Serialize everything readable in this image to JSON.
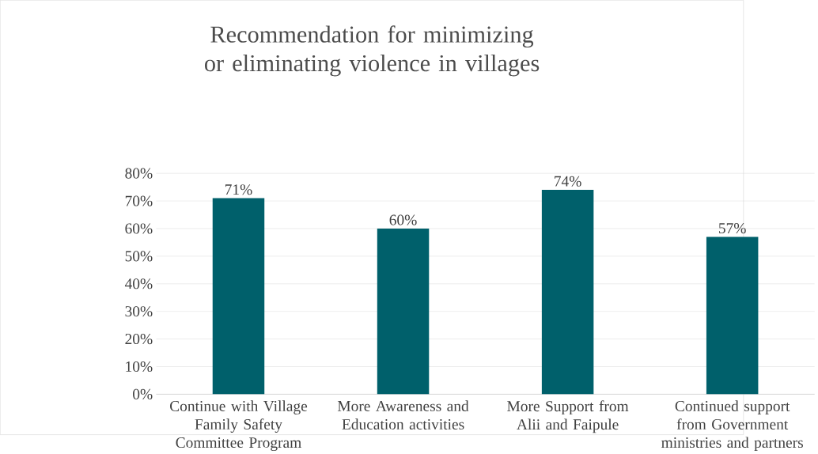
{
  "chart_data": {
    "type": "bar",
    "title": "Recommendation for minimizing or eliminating violence in villages",
    "categories": [
      "Continue with Village Family Safety Committee Program",
      "More Awareness and Education activities",
      "More Support from Alii and Faipule",
      "Continued support from Government ministries and partners"
    ],
    "values": [
      71,
      60,
      74,
      57
    ],
    "value_labels": [
      "71%",
      "60%",
      "74%",
      "57%"
    ],
    "color": "#00606b",
    "ylim": [
      0,
      80
    ],
    "yticks": [
      {
        "value": 0,
        "label": "0%"
      },
      {
        "value": 10,
        "label": "10%"
      },
      {
        "value": 20,
        "label": "20%"
      },
      {
        "value": 30,
        "label": "30%"
      },
      {
        "value": 40,
        "label": "40%"
      },
      {
        "value": 50,
        "label": "50%"
      },
      {
        "value": 60,
        "label": "60%"
      },
      {
        "value": 70,
        "label": "70%"
      },
      {
        "value": 80,
        "label": "80%"
      }
    ],
    "grid": "y"
  }
}
